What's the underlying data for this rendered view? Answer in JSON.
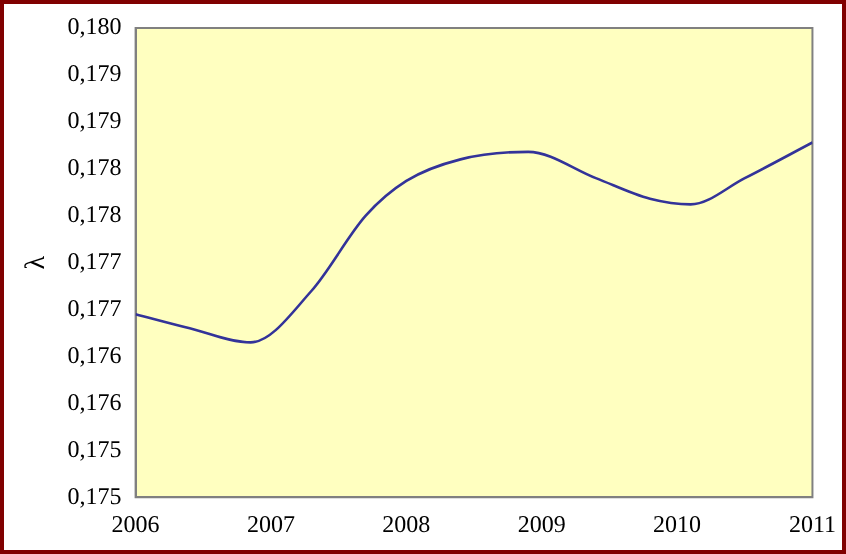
{
  "chart_data": {
    "type": "line",
    "ylabel": "λ",
    "series": [
      {
        "color": "#333399",
        "x": [
          2006,
          2006.4,
          2006.85,
          2007.3,
          2007.7,
          2008,
          2008.4,
          2008.9,
          2009.4,
          2009.8,
          2010.1,
          2010.5,
          2011
        ],
        "values": [
          0.17695,
          0.1768,
          0.17665,
          0.1772,
          0.178,
          0.17837,
          0.1786,
          0.17868,
          0.1784,
          0.17818,
          0.17812,
          0.1784,
          0.17878
        ]
      }
    ],
    "xlim": [
      2006,
      2011
    ],
    "xticks": [
      2006,
      2007,
      2008,
      2009,
      2010,
      2011
    ],
    "ylim": [
      0.175,
      0.18
    ],
    "yticks": [
      {
        "value": 0.175,
        "label": "0,175"
      },
      {
        "value": 0.1755,
        "label": "0,175"
      },
      {
        "value": 0.176,
        "label": "0,176"
      },
      {
        "value": 0.1765,
        "label": "0,176"
      },
      {
        "value": 0.177,
        "label": "0,177"
      },
      {
        "value": 0.1775,
        "label": "0,177"
      },
      {
        "value": 0.178,
        "label": "0,178"
      },
      {
        "value": 0.1785,
        "label": "0,178"
      },
      {
        "value": 0.179,
        "label": "0,179"
      },
      {
        "value": 0.1795,
        "label": "0,179"
      },
      {
        "value": 0.18,
        "label": "0,180"
      }
    ],
    "grid": false,
    "legend": false,
    "marker": "none",
    "line_style": "solid"
  }
}
